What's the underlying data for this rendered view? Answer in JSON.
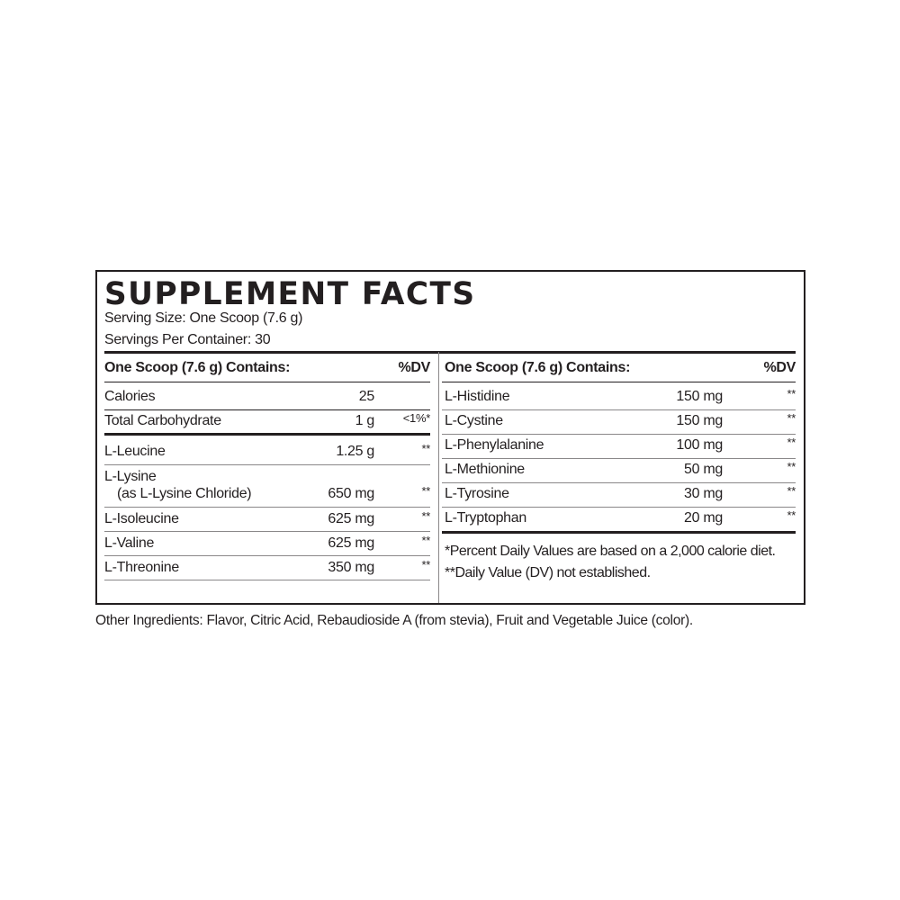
{
  "title": "SUPPLEMENT FACTS",
  "serving_size": "Serving Size: One Scoop (7.6 g)",
  "servings_per_container": "Servings Per Container: 30",
  "left": {
    "header": {
      "label": "One Scoop (7.6 g) Contains:",
      "dv": "%DV"
    },
    "rows": [
      {
        "name": "Calories",
        "amount": "25",
        "dv": ""
      },
      {
        "name": "Total Carbohydrate",
        "amount": "1 g",
        "dv": "<1%*"
      },
      {
        "name": "L-Leucine",
        "amount": "1.25 g",
        "dv": "**"
      },
      {
        "name": "L-Lysine",
        "sub": "(as L-Lysine Chloride)",
        "amount": "650 mg",
        "dv": "**"
      },
      {
        "name": "L-Isoleucine",
        "amount": "625 mg",
        "dv": "**"
      },
      {
        "name": "L-Valine",
        "amount": "625 mg",
        "dv": "**"
      },
      {
        "name": "L-Threonine",
        "amount": "350 mg",
        "dv": "**"
      }
    ]
  },
  "right": {
    "header": {
      "label": "One Scoop (7.6 g) Contains:",
      "dv": "%DV"
    },
    "rows": [
      {
        "name": "L-Histidine",
        "amount": "150 mg",
        "dv": "**"
      },
      {
        "name": "L-Cystine",
        "amount": "150 mg",
        "dv": "**"
      },
      {
        "name": "L-Phenylalanine",
        "amount": "100 mg",
        "dv": "**"
      },
      {
        "name": "L-Methionine",
        "amount": "50 mg",
        "dv": "**"
      },
      {
        "name": "L-Tyrosine",
        "amount": "30 mg",
        "dv": "**"
      },
      {
        "name": "L-Tryptophan",
        "amount": "20 mg",
        "dv": "**"
      }
    ],
    "footnotes": [
      "*Percent Daily Values are based on a 2,000 calorie diet.",
      "**Daily Value (DV) not established."
    ]
  },
  "other_ingredients": "Other Ingredients: Flavor, Citric Acid, Rebaudioside A (from stevia), Fruit and Vegetable Juice (color)."
}
